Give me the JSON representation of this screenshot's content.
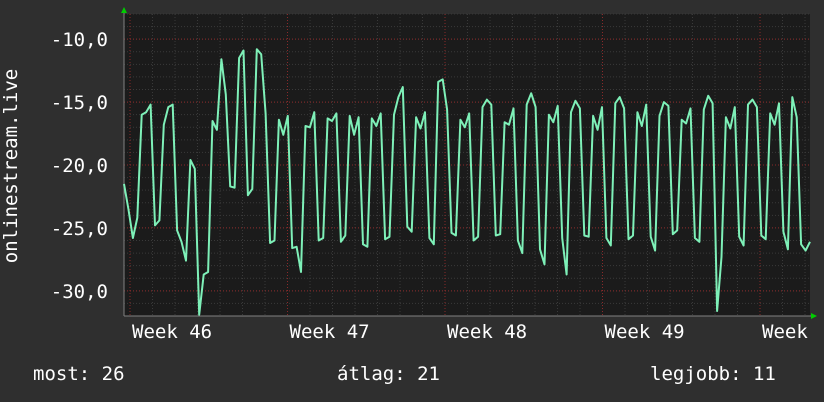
{
  "chart_data": {
    "type": "line",
    "ylabel": "onlinestream.live",
    "xlabel": "",
    "title": "",
    "ylim": [
      -32,
      -8
    ],
    "y_ticks": [
      {
        "value": -10,
        "label": "-10,0"
      },
      {
        "value": -15,
        "label": "-15,0"
      },
      {
        "value": -20,
        "label": "-20,0"
      },
      {
        "value": -25,
        "label": "-25,0"
      },
      {
        "value": -30,
        "label": "-30,0"
      }
    ],
    "x_ticks": [
      "Week 46",
      "Week 47",
      "Week 48",
      "Week 49",
      "Week"
    ],
    "grid": true,
    "colors": {
      "background": "#2f2f2f",
      "plot_background": "#1b1b1b",
      "grid_major": "#8a2a2a",
      "grid_minor": "#3a3a3a",
      "line": "#7ef0b8",
      "axis_arrow": "#00cc00"
    },
    "series": [
      {
        "values": [
          -21.5,
          -23.5,
          -25.8,
          -24.2,
          -16,
          -15.8,
          -15.2,
          -24.8,
          -24.4,
          -16.8,
          -15.4,
          -15.2,
          -25.2,
          -26.1,
          -27.6,
          -19.6,
          -20.3,
          -31.9,
          -28.7,
          -28.5,
          -16.5,
          -17.2,
          -11.6,
          -14.4,
          -21.7,
          -21.8,
          -11.5,
          -10.9,
          -22.4,
          -21.9,
          -10.8,
          -11.2,
          -15.9,
          -26.2,
          -26.0,
          -16.4,
          -17.6,
          -16.1,
          -26.6,
          -26.5,
          -28.5,
          -16.9,
          -17.0,
          -15.8,
          -26.0,
          -25.8,
          -16.3,
          -16.5,
          -15.9,
          -26.1,
          -25.6,
          -16.1,
          -17.6,
          -16.2,
          -26.3,
          -26.5,
          -16.3,
          -16.9,
          -15.9,
          -25.9,
          -25.7,
          -16.0,
          -14.6,
          -13.8,
          -24.9,
          -25.3,
          -16.2,
          -17.1,
          -15.8,
          -25.8,
          -26.3,
          -13.4,
          -13.2,
          -15.6,
          -25.4,
          -25.6,
          -16.4,
          -17.0,
          -15.9,
          -26.0,
          -25.7,
          -15.4,
          -14.8,
          -15.2,
          -25.6,
          -25.5,
          -16.6,
          -16.8,
          -15.5,
          -26.0,
          -27.0,
          -15.2,
          -14.3,
          -15.4,
          -26.7,
          -27.9,
          -16.0,
          -16.6,
          -15.3,
          -25.8,
          -28.7,
          -15.8,
          -14.9,
          -15.5,
          -25.6,
          -25.7,
          -16.1,
          -17.2,
          -15.4,
          -25.8,
          -26.4,
          -15.1,
          -14.6,
          -15.5,
          -25.9,
          -25.6,
          -15.8,
          -16.9,
          -15.2,
          -25.7,
          -26.8,
          -16.1,
          -15.0,
          -15.3,
          -25.5,
          -25.2,
          -16.4,
          -16.7,
          -15.5,
          -25.8,
          -26.1,
          -15.6,
          -14.5,
          -15.1,
          -31.6,
          -27.3,
          -16.2,
          -17.1,
          -15.4,
          -25.7,
          -26.4,
          -15.2,
          -14.8,
          -15.4,
          -25.6,
          -25.9,
          -15.9,
          -16.8,
          -15.1,
          -25.3,
          -26.7,
          -14.6,
          -16.2,
          -26.3,
          -26.8,
          -26.1
        ]
      }
    ]
  },
  "legend": {
    "current_label": "most:",
    "current_value": "26",
    "average_label": "átlag:",
    "average_value": "21",
    "best_label": "legjobb:",
    "best_value": "11"
  }
}
